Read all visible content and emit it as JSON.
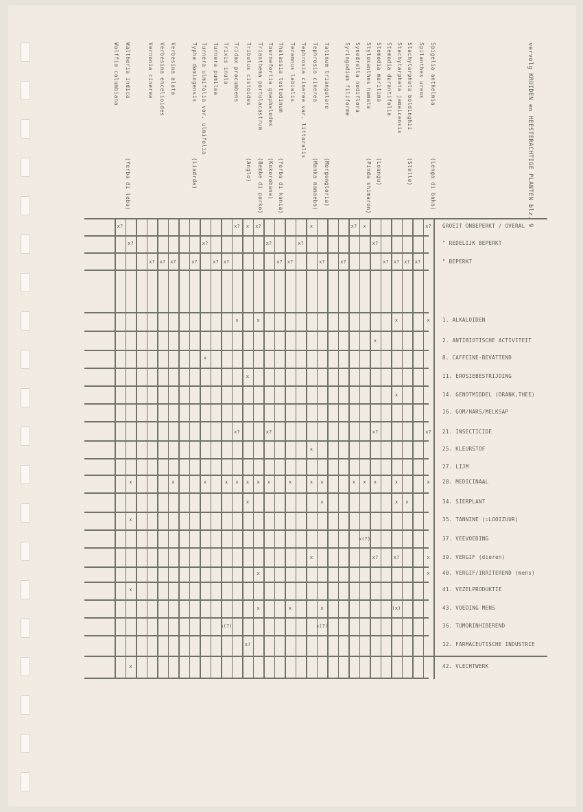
{
  "title": "vervolg KRUIDEN en HEESTERACHTIGE PLANTEN blz. 9",
  "plants": [
    {
      "name": "Spigelia anthelmia",
      "local": "(Lenga di baka)"
    },
    {
      "name": "Spilanthes urens",
      "local": ""
    },
    {
      "name": "Stachytarpheta boldinghii",
      "local": "(Stelle)"
    },
    {
      "name": "Stachytarpheta jamaicensis",
      "local": ""
    },
    {
      "name": "Stemodia durantifolia",
      "local": ""
    },
    {
      "name": "Stemodia maritima",
      "local": "(Loangu)"
    },
    {
      "name": "Stylosanthes hamata",
      "local": "(Pinda shimaron)"
    },
    {
      "name": "Synedrella nodiflora",
      "local": ""
    },
    {
      "name": "Syringodium filiforme",
      "local": ""
    },
    {
      "name": "Talinum triangulare",
      "local": "(Morgengloria)"
    },
    {
      "name": "Tephrosia cinerea",
      "local": "(Manka mamaeba)"
    },
    {
      "name": "Tephrosia cinerea var. littoralis",
      "local": ""
    },
    {
      "name": "Teramnus labialis",
      "local": ""
    },
    {
      "name": "Thalassia testudinum",
      "local": "(Yerba di kania)"
    },
    {
      "name": "Tournefortia gnaphalodes",
      "local": "(Kokorobana)"
    },
    {
      "name": "Trianthema portulacastrum",
      "local": "(Bembe di porko)"
    },
    {
      "name": "Tribulus cistoides",
      "local": "(Anglo)"
    },
    {
      "name": "Tridax procumbens",
      "local": ""
    },
    {
      "name": "Trixis inula",
      "local": ""
    },
    {
      "name": "Turnera pumilea",
      "local": ""
    },
    {
      "name": "Turnera ulmifolia var. ulmifolia",
      "local": ""
    },
    {
      "name": "Typha domingensis",
      "local": "(Liadrda)"
    },
    {
      "name": "Verbesina alata",
      "local": ""
    },
    {
      "name": "Verbesina encelioides",
      "local": ""
    },
    {
      "name": "Vernonia cinerea",
      "local": ""
    },
    {
      "name": "Waltheria indica",
      "local": "(Yerba di leba)"
    },
    {
      "name": "Wolffia columbiana",
      "local": ""
    }
  ],
  "rows": [
    {
      "label": "GROEIT ONBEPERKT / OVERAL",
      "marks": [
        [
          0,
          "x?"
        ],
        [
          11,
          "x?"
        ],
        [
          12,
          "x"
        ],
        [
          13,
          "x?"
        ],
        [
          18,
          "x"
        ],
        [
          22,
          "x?"
        ],
        [
          23,
          "x"
        ],
        [
          29,
          "x?"
        ]
      ]
    },
    {
      "label": "\"   REDELIJK BEPERKT",
      "marks": [
        [
          1,
          "x?"
        ],
        [
          8,
          "x?"
        ],
        [
          14,
          "x?"
        ],
        [
          17,
          "x?"
        ],
        [
          24,
          "x?"
        ]
      ]
    },
    {
      "label": "\"   BEPERKT",
      "marks": [
        [
          3,
          "x?"
        ],
        [
          4,
          "x?"
        ],
        [
          5,
          "x?"
        ],
        [
          7,
          "x?"
        ],
        [
          9,
          "x?"
        ],
        [
          10,
          "x?"
        ],
        [
          15,
          "x?"
        ],
        [
          16,
          "x?"
        ],
        [
          19,
          "x?"
        ],
        [
          21,
          "x?"
        ],
        [
          25,
          "x?"
        ],
        [
          26,
          "x?"
        ],
        [
          27,
          "x?"
        ],
        [
          28,
          "x?"
        ]
      ]
    },
    {
      "label": "1. ALKALOIDEN",
      "marks": [
        [
          11,
          "x"
        ],
        [
          13,
          "x"
        ],
        [
          26,
          "x"
        ],
        [
          29,
          "x"
        ]
      ]
    },
    {
      "label": "2. ANTIBIOTISCHE ACTIVITEIT",
      "marks": [
        [
          24,
          "x"
        ]
      ]
    },
    {
      "label": "8. CAFFEINE-BEVATTEND",
      "marks": [
        [
          8,
          "x"
        ]
      ]
    },
    {
      "label": "11. EROSIEBESTRIJDING",
      "marks": [
        [
          12,
          "x"
        ]
      ]
    },
    {
      "label": "14. GENOTMIDDEL (DRANK,THEE)",
      "marks": [
        [
          26,
          "x"
        ]
      ]
    },
    {
      "label": "16. GOM/HARS/MELKSAP",
      "marks": []
    },
    {
      "label": "21. INSECTICIDE",
      "marks": [
        [
          11,
          "x?"
        ],
        [
          14,
          "x?"
        ],
        [
          24,
          "x?"
        ],
        [
          29,
          "x?"
        ]
      ]
    },
    {
      "label": "25. KLEURSTOF",
      "marks": [
        [
          18,
          "x"
        ]
      ]
    },
    {
      "label": "27. LIJM",
      "marks": []
    },
    {
      "label": "28. MEDICINAAL",
      "marks": [
        [
          1,
          "x"
        ],
        [
          5,
          "x"
        ],
        [
          8,
          "x"
        ],
        [
          10,
          "x"
        ],
        [
          11,
          "x"
        ],
        [
          12,
          "x"
        ],
        [
          13,
          "x"
        ],
        [
          14,
          "x"
        ],
        [
          16,
          "x"
        ],
        [
          18,
          "x"
        ],
        [
          19,
          "x"
        ],
        [
          22,
          "x"
        ],
        [
          23,
          "x"
        ],
        [
          24,
          "x"
        ],
        [
          26,
          "x"
        ],
        [
          29,
          "x"
        ]
      ]
    },
    {
      "label": "34. SIERPLANT",
      "marks": [
        [
          12,
          "x"
        ],
        [
          19,
          "x"
        ],
        [
          26,
          "x"
        ],
        [
          27,
          "x"
        ]
      ]
    },
    {
      "label": "35. TANNINE (=LOOIZUUR)",
      "marks": [
        [
          1,
          "x"
        ]
      ]
    },
    {
      "label": "37. VEEVOEDING",
      "marks": [
        [
          23,
          "x(?)"
        ]
      ]
    },
    {
      "label": "39. VERGIF (dieren)",
      "marks": [
        [
          18,
          "x"
        ],
        [
          24,
          "x?"
        ],
        [
          26,
          "x?"
        ],
        [
          29,
          "x"
        ]
      ]
    },
    {
      "label": "40. VERGIF/IRRITEREND (mens)",
      "marks": [
        [
          13,
          "x"
        ],
        [
          29,
          "x"
        ]
      ]
    },
    {
      "label": "41. VEZELPRODUKTIE",
      "marks": [
        [
          1,
          "x"
        ]
      ]
    },
    {
      "label": "43. VOEDING MENS",
      "marks": [
        [
          13,
          "x"
        ],
        [
          16,
          "x"
        ],
        [
          19,
          "x"
        ],
        [
          26,
          "(x)"
        ]
      ]
    },
    {
      "label": "36. TUMORINHIBEREND",
      "marks": [
        [
          10,
          "x(?)"
        ],
        [
          19,
          "x(?)"
        ]
      ]
    },
    {
      "label": "12. FARMACEUTISCHE INDUSTRIE",
      "marks": [
        [
          12,
          "x?"
        ]
      ]
    },
    {
      "label": "42. VLECHTWERK",
      "marks": [
        [
          1,
          "x"
        ]
      ]
    }
  ]
}
